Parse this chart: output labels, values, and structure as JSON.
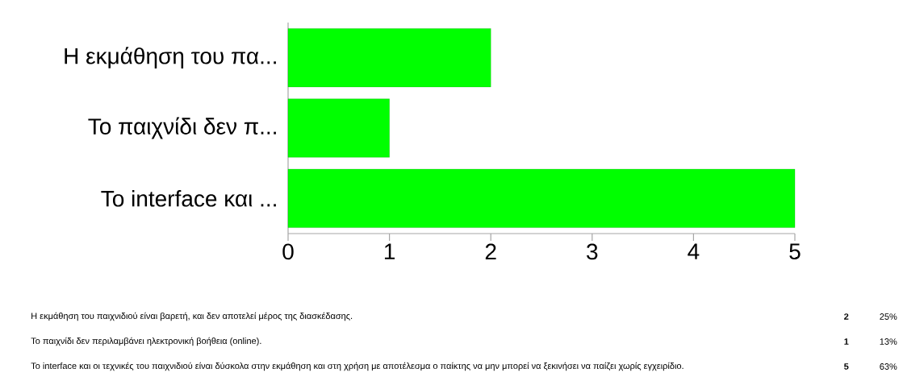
{
  "chart_data": {
    "type": "bar",
    "orientation": "horizontal",
    "categories": [
      "Η εκμάθηση του πα...",
      "Το παιχνίδι δεν π...",
      "Το interface και ..."
    ],
    "values": [
      2,
      1,
      5
    ],
    "color": "#00ff00",
    "xlim": [
      0,
      5
    ],
    "xticks": [
      0,
      1,
      2,
      3,
      4,
      5
    ],
    "grid": false,
    "annotations": [
      "Η εκμάθηση του παιχνιδιού είναι βαρετή, και δεν αποτελεί μέρος της διασκέδασης.",
      "Το παιχνίδι δεν περιλαμβάνει ηλεκτρονική βοήθεια (online).",
      "Το interface και οι τεχνικές του παιχνιδιού είναι δύσκολα στην εκμάθηση και στη χρήση με αποτέλεσμα ο παίκτης να μην μπορεί να ξεκινήσει να παίζει χωρίς εγχειρίδιο.",
      "2",
      "1",
      "5",
      "25%",
      "13%",
      "63%"
    ]
  }
}
